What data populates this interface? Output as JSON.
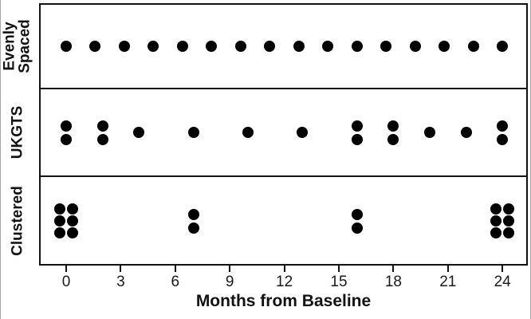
{
  "chart_data": {
    "type": "scatter",
    "title": "",
    "xlabel": "Months from Baseline",
    "ylabel": "",
    "x_ticks": [
      0,
      3,
      6,
      9,
      12,
      15,
      18,
      21,
      24
    ],
    "xlim": [
      -1.5,
      25.5
    ],
    "grid": false,
    "legend": "none",
    "dot_color": "#000000",
    "panels": [
      {
        "label": "Evenly Spaced",
        "label_lines": [
          "Evenly",
          "Spaced"
        ],
        "visits": [
          {
            "month": 0,
            "count": 1
          },
          {
            "month": 1.6,
            "count": 1
          },
          {
            "month": 3.2,
            "count": 1
          },
          {
            "month": 4.8,
            "count": 1
          },
          {
            "month": 6.4,
            "count": 1
          },
          {
            "month": 8,
            "count": 1
          },
          {
            "month": 9.6,
            "count": 1
          },
          {
            "month": 11.2,
            "count": 1
          },
          {
            "month": 12.8,
            "count": 1
          },
          {
            "month": 14.4,
            "count": 1
          },
          {
            "month": 16,
            "count": 1
          },
          {
            "month": 17.6,
            "count": 1
          },
          {
            "month": 19.2,
            "count": 1
          },
          {
            "month": 20.8,
            "count": 1
          },
          {
            "month": 22.4,
            "count": 1
          },
          {
            "month": 24,
            "count": 1
          }
        ]
      },
      {
        "label": "UKGTS",
        "label_lines": [
          "UKGTS"
        ],
        "visits": [
          {
            "month": 0,
            "count": 2
          },
          {
            "month": 2,
            "count": 2
          },
          {
            "month": 4,
            "count": 1
          },
          {
            "month": 7,
            "count": 1
          },
          {
            "month": 10,
            "count": 1
          },
          {
            "month": 13,
            "count": 1
          },
          {
            "month": 16,
            "count": 2
          },
          {
            "month": 18,
            "count": 2
          },
          {
            "month": 20,
            "count": 1
          },
          {
            "month": 22,
            "count": 1
          },
          {
            "month": 24,
            "count": 2
          }
        ]
      },
      {
        "label": "Clustered",
        "label_lines": [
          "Clustered"
        ],
        "visits": [
          {
            "month": 0,
            "count": 6
          },
          {
            "month": 7,
            "count": 2
          },
          {
            "month": 16,
            "count": 2
          },
          {
            "month": 24,
            "count": 6
          }
        ]
      }
    ]
  }
}
